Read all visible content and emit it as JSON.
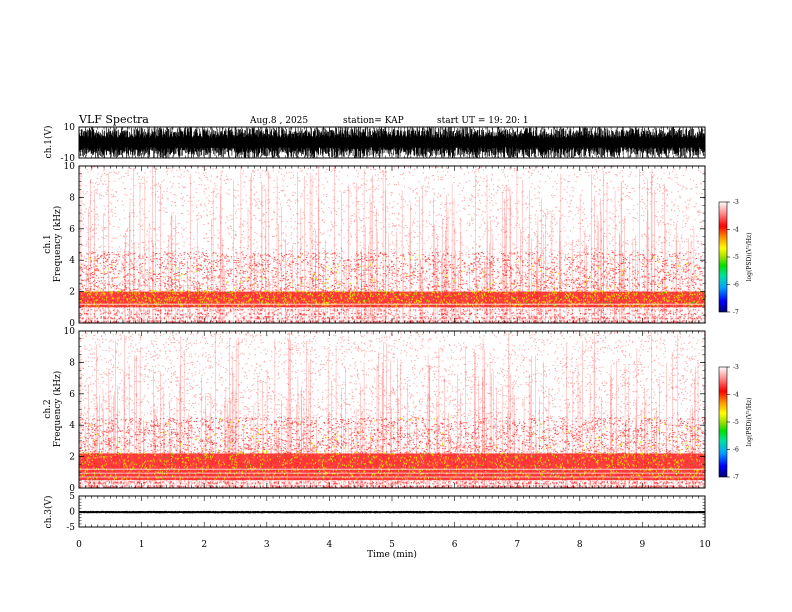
{
  "header": {
    "title": "VLF Spectra",
    "date": "Aug.8 , 2025",
    "station": "station= KAP",
    "start_time": "start UT = 19: 20: 1"
  },
  "colors": {
    "spec_bg": "#ffffff",
    "spec_low": "#ff9090",
    "spec_mid": "#ff2020",
    "spec_hot": "#e6e600",
    "spec_green": "#00c800",
    "waveform": "#000000",
    "colorbar_stops": [
      "#000070",
      "#0000ff",
      "#00a0ff",
      "#00e0a0",
      "#00e000",
      "#a0e000",
      "#ffff00",
      "#ff9000",
      "#ff0000",
      "#ff9090",
      "#ffffff"
    ]
  },
  "chart_data": [
    {
      "type": "line",
      "name": "ch1-waveform",
      "ylabel": "ch.1(V)",
      "ylim": [
        -10,
        10
      ],
      "yticks": [
        "10",
        "-10"
      ],
      "xlim": [
        0,
        10
      ],
      "description_values": {
        "amplitude_range": [
          -10,
          10
        ],
        "saturated": true
      }
    },
    {
      "type": "heatmap",
      "name": "ch1-spectrogram",
      "ylabel": "ch.1 Frequency (kHz)",
      "ylim": [
        0,
        10
      ],
      "yticks": [
        "0",
        "2",
        "4",
        "6",
        "8",
        "10"
      ],
      "xlim": [
        0,
        10
      ],
      "intense_band_khz": [
        1.0,
        2.0
      ],
      "colorbar": {
        "label": "log(PSD)(V²/Hz)",
        "range": [
          -7,
          -3
        ],
        "ticks": [
          "-3",
          "-4",
          "-5",
          "-6",
          "-7"
        ]
      }
    },
    {
      "type": "heatmap",
      "name": "ch2-spectrogram",
      "ylabel": "ch.2 Frequency (kHz)",
      "ylim": [
        0,
        10
      ],
      "yticks": [
        "0",
        "2",
        "4",
        "6",
        "8",
        "10"
      ],
      "xlim": [
        0,
        10
      ],
      "intense_band_khz": [
        0.5,
        2.2
      ],
      "colorbar": {
        "label": "log(PSD)(V²/Hz)",
        "range": [
          -7,
          -3
        ],
        "ticks": [
          "-3",
          "-4",
          "-5",
          "-6",
          "-7"
        ]
      }
    },
    {
      "type": "line",
      "name": "ch3-waveform",
      "ylabel": "ch.3(V)",
      "ylim": [
        -5,
        5
      ],
      "yticks": [
        "5",
        "0",
        "-5"
      ],
      "xlim": [
        0,
        10
      ],
      "description_values": {
        "baseline": -0.2,
        "noise_amplitude": 0.4
      }
    }
  ],
  "xaxis": {
    "label": "Time (min)",
    "ticks": [
      "0",
      "1",
      "2",
      "3",
      "4",
      "5",
      "6",
      "7",
      "8",
      "9",
      "10"
    ]
  },
  "colorbar_label": "log(PSD)(V²/Hz)"
}
